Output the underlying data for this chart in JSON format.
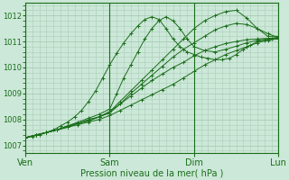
{
  "bg_color": "#cce8d8",
  "grid_color": "#aaccb8",
  "line_color": "#1a6e1a",
  "marker_color": "#1a6e1a",
  "xlabel": "Pression niveau de la mer( hPa )",
  "yticks": [
    1007,
    1008,
    1009,
    1010,
    1011,
    1012
  ],
  "xlabels": [
    "Ven",
    "Sam",
    "Dim",
    "Lun"
  ],
  "xlim": [
    0,
    72
  ],
  "ylim": [
    1006.7,
    1012.5
  ],
  "day_positions": [
    0,
    24,
    48,
    72
  ],
  "lines": [
    {
      "x": [
        0,
        3,
        6,
        9,
        12,
        15,
        18,
        21,
        24,
        27,
        30,
        33,
        36,
        39,
        42,
        45,
        48,
        51,
        54,
        57,
        60,
        63,
        66,
        69,
        72
      ],
      "y": [
        1007.3,
        1007.4,
        1007.5,
        1007.6,
        1007.7,
        1007.8,
        1007.9,
        1008.0,
        1008.15,
        1008.35,
        1008.55,
        1008.75,
        1008.95,
        1009.15,
        1009.35,
        1009.6,
        1009.85,
        1010.1,
        1010.3,
        1010.5,
        1010.65,
        1010.8,
        1010.95,
        1011.05,
        1011.1
      ]
    },
    {
      "x": [
        0,
        3,
        6,
        9,
        12,
        15,
        18,
        21,
        24,
        27,
        30,
        33,
        36,
        39,
        42,
        45,
        48,
        51,
        54,
        57,
        60,
        63,
        66,
        69,
        72
      ],
      "y": [
        1007.3,
        1007.4,
        1007.5,
        1007.6,
        1007.7,
        1007.85,
        1007.95,
        1008.1,
        1008.3,
        1008.6,
        1008.9,
        1009.2,
        1009.5,
        1009.75,
        1010.0,
        1010.2,
        1010.45,
        1010.65,
        1010.8,
        1010.92,
        1011.0,
        1011.07,
        1011.1,
        1011.12,
        1011.15
      ]
    },
    {
      "x": [
        0,
        3,
        6,
        9,
        12,
        15,
        18,
        21,
        24,
        27,
        30,
        33,
        36,
        39,
        42,
        45,
        48,
        51,
        54,
        57,
        60,
        63,
        66,
        69,
        72
      ],
      "y": [
        1007.3,
        1007.4,
        1007.5,
        1007.6,
        1007.75,
        1007.85,
        1008.0,
        1008.1,
        1008.3,
        1008.7,
        1009.1,
        1009.5,
        1009.9,
        1010.3,
        1010.7,
        1011.1,
        1011.5,
        1011.8,
        1012.0,
        1012.15,
        1012.2,
        1011.9,
        1011.5,
        1011.2,
        1011.2
      ]
    },
    {
      "x": [
        0,
        3,
        6,
        9,
        12,
        15,
        18,
        21,
        24,
        27,
        30,
        33,
        36,
        39,
        42,
        45,
        48,
        51,
        54,
        57,
        60,
        63,
        66,
        69,
        72
      ],
      "y": [
        1007.3,
        1007.4,
        1007.5,
        1007.6,
        1007.75,
        1007.85,
        1007.95,
        1008.1,
        1008.25,
        1008.6,
        1009.0,
        1009.35,
        1009.7,
        1010.05,
        1010.4,
        1010.7,
        1010.95,
        1011.2,
        1011.45,
        1011.6,
        1011.7,
        1011.65,
        1011.5,
        1011.3,
        1011.15
      ]
    },
    {
      "x": [
        0,
        3,
        6,
        9,
        12,
        15,
        18,
        21,
        24,
        26,
        28,
        30,
        32,
        34,
        36,
        38,
        40,
        42,
        44,
        46,
        48,
        51,
        54,
        57,
        60,
        63,
        66,
        69,
        72
      ],
      "y": [
        1007.3,
        1007.4,
        1007.5,
        1007.6,
        1007.75,
        1007.9,
        1008.05,
        1008.2,
        1008.4,
        1009.0,
        1009.6,
        1010.1,
        1010.6,
        1011.1,
        1011.5,
        1011.8,
        1011.95,
        1011.8,
        1011.5,
        1011.1,
        1010.8,
        1010.65,
        1010.6,
        1010.7,
        1010.82,
        1010.95,
        1011.05,
        1011.1,
        1011.15
      ]
    },
    {
      "x": [
        0,
        2,
        4,
        6,
        8,
        10,
        12,
        14,
        16,
        18,
        20,
        22,
        24,
        26,
        28,
        30,
        32,
        34,
        36,
        38,
        40,
        42,
        44,
        46,
        48,
        50,
        52,
        54,
        56,
        58,
        60,
        62,
        64,
        66,
        68,
        70,
        72
      ],
      "y": [
        1007.3,
        1007.35,
        1007.4,
        1007.5,
        1007.6,
        1007.75,
        1007.9,
        1008.1,
        1008.35,
        1008.7,
        1009.1,
        1009.6,
        1010.1,
        1010.55,
        1010.95,
        1011.3,
        1011.6,
        1011.85,
        1011.95,
        1011.85,
        1011.5,
        1011.1,
        1010.8,
        1010.6,
        1010.5,
        1010.4,
        1010.35,
        1010.3,
        1010.3,
        1010.35,
        1010.5,
        1010.7,
        1010.85,
        1011.0,
        1011.05,
        1011.1,
        1011.15
      ]
    }
  ]
}
